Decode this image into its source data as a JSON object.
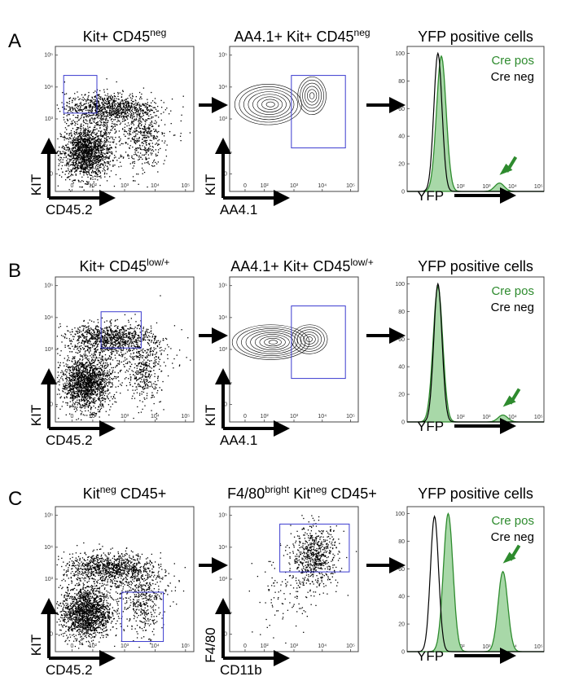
{
  "colors": {
    "cre_pos": "#2e8b2e",
    "cre_fill": "#a8d8a8",
    "cre_neg": "#000000",
    "gate": "#3b3bcf"
  },
  "log_ticks": [
    "0",
    "10²",
    "10³",
    "10⁴",
    "10⁵"
  ],
  "chart_data": [
    {
      "panel": "A",
      "plots": [
        {
          "type": "scatter",
          "title": "Kit+ CD45",
          "title_sup": "neg",
          "xlabel": "CD45.2",
          "ylabel": "KIT",
          "gate_label": "Kit+ CD45neg gate"
        },
        {
          "type": "contour",
          "title": "AA4.1+ Kit+ CD45",
          "title_sup": "neg",
          "xlabel": "AA4.1",
          "ylabel": "KIT",
          "gate_label": "AA4.1+ gate"
        },
        {
          "type": "histogram",
          "title": "YFP positive cells",
          "xlabel": "YFP",
          "y_ticks": [
            0,
            20,
            40,
            60,
            80,
            100
          ],
          "series": [
            {
              "name": "Cre pos",
              "peaks": [
                [
                  2.3,
                  98
                ],
                [
                  4.0,
                  6
                ]
              ]
            },
            {
              "name": "Cre neg",
              "peaks": [
                [
                  2.2,
                  100
                ]
              ]
            }
          ]
        }
      ]
    },
    {
      "panel": "B",
      "plots": [
        {
          "type": "scatter",
          "title": "Kit+ CD45",
          "title_sup": "low/+",
          "xlabel": "CD45.2",
          "ylabel": "KIT",
          "gate_label": "Kit+ CD45low/+ gate"
        },
        {
          "type": "contour",
          "title": "AA4.1+ Kit+ CD45",
          "title_sup": "low/+",
          "xlabel": "AA4.1",
          "ylabel": "KIT",
          "gate_label": "AA4.1+ gate"
        },
        {
          "type": "histogram",
          "title": "YFP positive cells",
          "xlabel": "YFP",
          "y_ticks": [
            0,
            20,
            40,
            60,
            80,
            100
          ],
          "series": [
            {
              "name": "Cre pos",
              "peaks": [
                [
                  2.2,
                  98
                ],
                [
                  4.1,
                  5
                ]
              ]
            },
            {
              "name": "Cre neg",
              "peaks": [
                [
                  2.2,
                  100
                ]
              ]
            }
          ]
        }
      ]
    },
    {
      "panel": "C",
      "plots": [
        {
          "type": "scatter",
          "title": "Kit",
          "title_sup": "neg",
          "title_rest": " CD45+",
          "xlabel": "CD45.2",
          "ylabel": "KIT",
          "gate_label": "Kitneg CD45+ gate"
        },
        {
          "type": "scatter",
          "title": "F4/80",
          "title_sup": "bright",
          "title_rest": " Kit",
          "title_sup2": "neg",
          "title_rest2": " CD45+",
          "xlabel": "CD11b",
          "ylabel": "F4/80",
          "gate_label": "F4/80bright gate"
        },
        {
          "type": "histogram",
          "title": "YFP positive cells",
          "xlabel": "YFP",
          "y_ticks": [
            0,
            20,
            40,
            60,
            80,
            100
          ],
          "series": [
            {
              "name": "Cre pos",
              "peaks": [
                [
                  2.5,
                  100
                ],
                [
                  4.1,
                  58
                ]
              ]
            },
            {
              "name": "Cre neg",
              "peaks": [
                [
                  2.1,
                  98
                ]
              ]
            }
          ]
        }
      ]
    }
  ]
}
